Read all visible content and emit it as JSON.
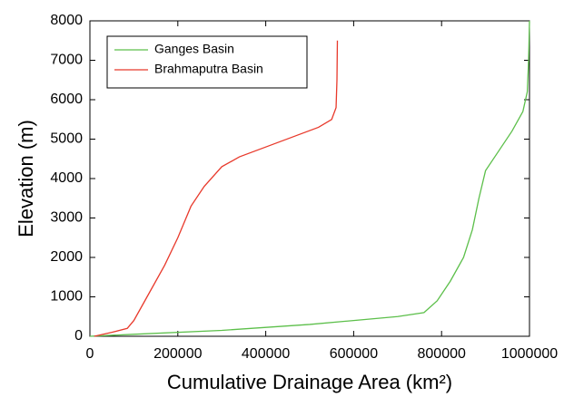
{
  "chart_data": {
    "type": "line",
    "x_label": "Cumulative Drainage Area (km²)",
    "y_label": "Elevation (m)",
    "xlim": [
      0,
      1000000
    ],
    "ylim": [
      0,
      8000
    ],
    "xticks": [
      0,
      200000,
      400000,
      600000,
      800000,
      1000000
    ],
    "yticks": [
      0,
      1000,
      2000,
      3000,
      4000,
      5000,
      6000,
      7000,
      8000
    ],
    "legend": "upper left",
    "series": [
      {
        "name": "Ganges Basin",
        "color": "#5cbf4a",
        "x": [
          0,
          100000,
          300000,
          500000,
          600000,
          700000,
          760000,
          790000,
          820000,
          850000,
          870000,
          885000,
          900000,
          930000,
          960000,
          985000,
          995000,
          998000,
          1000000
        ],
        "values": [
          0,
          50,
          150,
          300,
          400,
          500,
          600,
          900,
          1400,
          2000,
          2700,
          3500,
          4200,
          4700,
          5200,
          5700,
          6200,
          7000,
          8000
        ]
      },
      {
        "name": "Brahmaputra Basin",
        "color": "#e8392b",
        "x": [
          10000,
          50000,
          85000,
          100000,
          130000,
          170000,
          200000,
          230000,
          260000,
          300000,
          340000,
          400000,
          460000,
          520000,
          550000,
          560000,
          562000,
          563000
        ],
        "values": [
          0,
          100,
          200,
          400,
          1000,
          1800,
          2500,
          3300,
          3800,
          4300,
          4550,
          4800,
          5050,
          5300,
          5500,
          5800,
          6500,
          7500
        ]
      }
    ]
  }
}
